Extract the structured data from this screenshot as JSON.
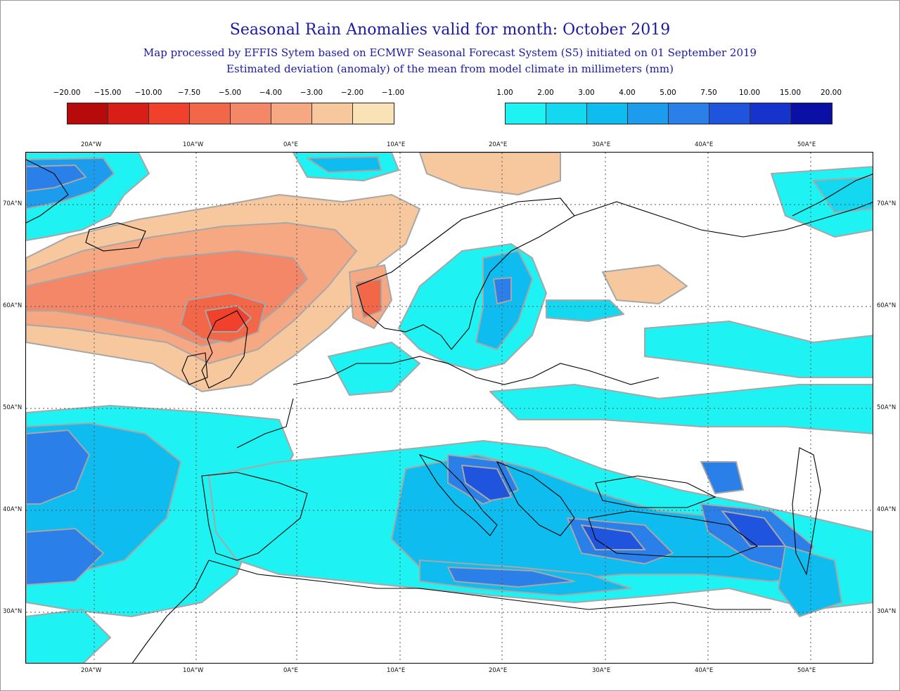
{
  "title": "Seasonal Rain Anomalies valid for month: October 2019",
  "subtitle1": "Map processed by EFFIS Sytem based on ECMWF Seasonal Forecast System (S5) initiated on 01 September 2019",
  "subtitle2": "Estimated deviation (anomaly) of the mean from model climate in millimeters (mm)",
  "legend_negative": {
    "ticks": [
      "−20.00",
      "−15.00",
      "−10.00",
      "−7.50",
      "−5.00",
      "−4.00",
      "−3.00",
      "−2.00",
      "−1.00"
    ],
    "colors": [
      "#b70a0a",
      "#d91e17",
      "#f0412c",
      "#f26748",
      "#f48767",
      "#f6a883",
      "#f7c79e",
      "#f9e2b6"
    ]
  },
  "legend_positive": {
    "ticks": [
      "1.00",
      "2.00",
      "3.00",
      "4.00",
      "5.00",
      "7.50",
      "10.00",
      "15.00",
      "20.00"
    ],
    "colors": [
      "#1ef2f2",
      "#13d8f0",
      "#0fbcef",
      "#1d9ced",
      "#2b7fe9",
      "#1f55de",
      "#1633cc",
      "#0a10a6"
    ]
  },
  "x_axis_labels": [
    "20A°W",
    "10A°W",
    "0A°E",
    "10A°E",
    "20A°E",
    "30A°E",
    "40A°E",
    "50A°E"
  ],
  "y_axis_labels": [
    "70A°N",
    "60A°N",
    "50A°N",
    "40A°N",
    "30A°N"
  ],
  "colors": {
    "title": "#1a1aa6",
    "contour": "#a7a7a7",
    "coast": "#000000",
    "graticule": "#555555"
  }
}
